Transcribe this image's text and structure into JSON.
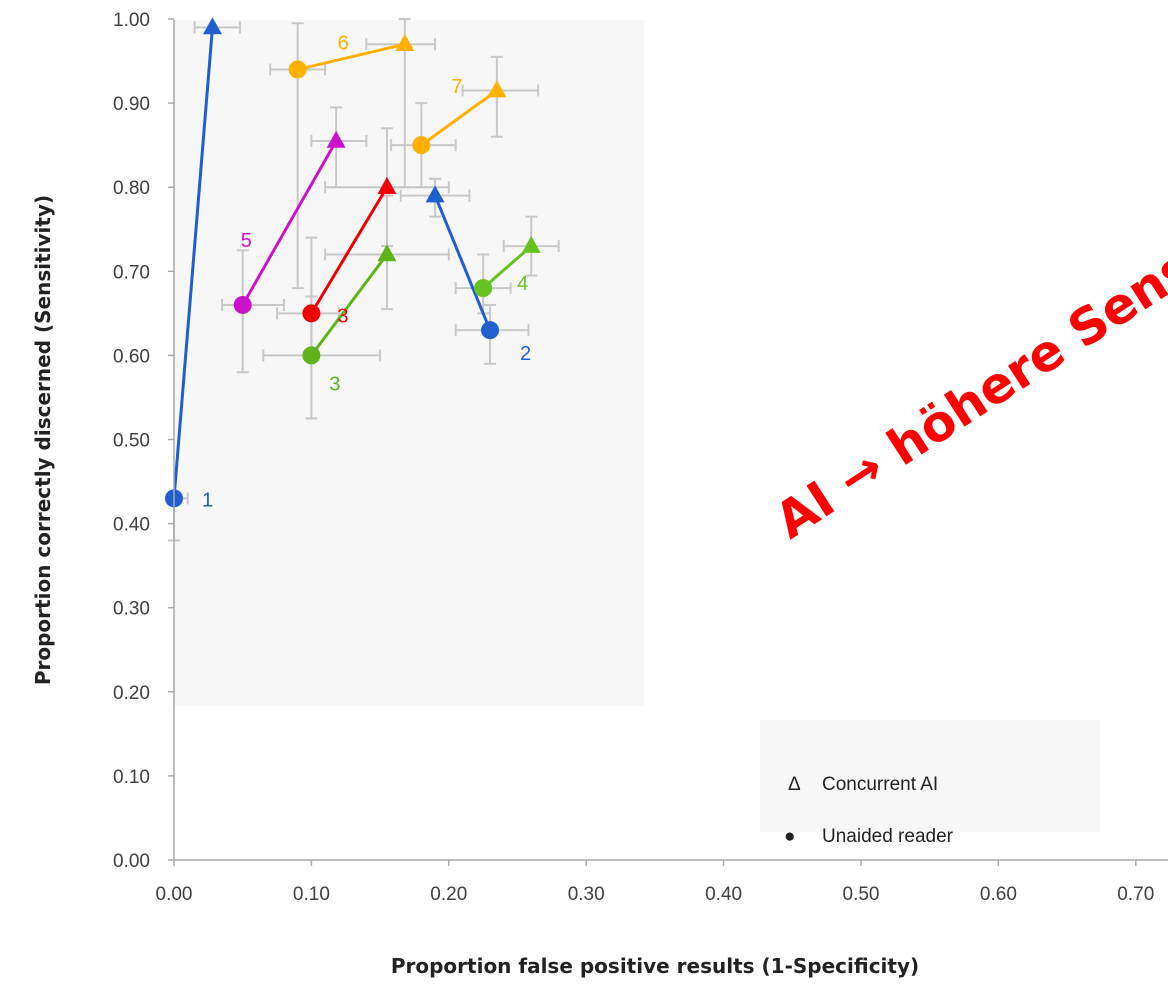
{
  "chart_data": {
    "type": "scatter",
    "xlabel": "Proportion  false positive results (1-Specificity)",
    "ylabel": "Proportion correctly discerned (Sensitivity)",
    "xlim": [
      0,
      0.75
    ],
    "ylim": [
      0,
      1.0
    ],
    "x_ticks": [
      "0.00",
      "0.10",
      "0.20",
      "0.30",
      "0.40",
      "0.50",
      "0.60",
      "0.70"
    ],
    "y_ticks": [
      "0.00",
      "0.10",
      "0.20",
      "0.30",
      "0.40",
      "0.50",
      "0.60",
      "0.70",
      "0.80",
      "0.90",
      "1.00"
    ],
    "legend": {
      "placement": "bottom-right",
      "entries": [
        {
          "symbol": "Δ",
          "label": "Concurrent AI"
        },
        {
          "symbol": "●",
          "label": "Unaided reader"
        }
      ]
    },
    "series": [
      {
        "label": "1",
        "color": "#1f5fcf",
        "unaided": {
          "x": 0.0,
          "y": 0.43,
          "x_err": [
            0.0,
            0.01
          ],
          "y_err": [
            0.38,
            0.43
          ]
        },
        "ai": {
          "x": 0.028,
          "y": 0.99,
          "x_err": [
            0.015,
            0.048
          ],
          "y_err": [
            0.99,
            0.99
          ]
        }
      },
      {
        "label": "2",
        "color": "#1f5fcf",
        "unaided": {
          "x": 0.23,
          "y": 0.63,
          "x_err": [
            0.205,
            0.258
          ],
          "y_err": [
            0.59,
            0.66
          ]
        },
        "ai": {
          "x": 0.19,
          "y": 0.79,
          "x_err": [
            0.165,
            0.215
          ],
          "y_err": [
            0.765,
            0.81
          ]
        }
      },
      {
        "label": "3",
        "color": "#ee0000",
        "unaided": {
          "x": 0.1,
          "y": 0.65,
          "x_err": [
            0.075,
            0.12
          ],
          "y_err": [
            0.6,
            0.74
          ]
        },
        "ai": {
          "x": 0.155,
          "y": 0.8,
          "x_err": [
            0.11,
            0.2
          ],
          "y_err": [
            0.73,
            0.87
          ]
        }
      },
      {
        "label": "3",
        "color": "#5db31a",
        "unaided": {
          "x": 0.1,
          "y": 0.6,
          "x_err": [
            0.065,
            0.15
          ],
          "y_err": [
            0.525,
            0.67
          ]
        },
        "ai": {
          "x": 0.155,
          "y": 0.72,
          "x_err": [
            0.11,
            0.2
          ],
          "y_err": [
            0.655,
            0.79
          ]
        }
      },
      {
        "label": "4",
        "color": "#66c21f",
        "unaided": {
          "x": 0.225,
          "y": 0.68,
          "x_err": [
            0.205,
            0.245
          ],
          "y_err": [
            0.65,
            0.72
          ]
        },
        "ai": {
          "x": 0.26,
          "y": 0.73,
          "x_err": [
            0.24,
            0.28
          ],
          "y_err": [
            0.695,
            0.765
          ]
        }
      },
      {
        "label": "5",
        "color": "#cc11cc",
        "unaided": {
          "x": 0.05,
          "y": 0.66,
          "x_err": [
            0.035,
            0.08
          ],
          "y_err": [
            0.58,
            0.725
          ]
        },
        "ai": {
          "x": 0.118,
          "y": 0.855,
          "x_err": [
            0.1,
            0.14
          ],
          "y_err": [
            0.8,
            0.895
          ]
        }
      },
      {
        "label": "6",
        "color": "#ffb000",
        "unaided": {
          "x": 0.09,
          "y": 0.94,
          "x_err": [
            0.07,
            0.11
          ],
          "y_err": [
            0.68,
            0.995
          ]
        },
        "ai": {
          "x": 0.168,
          "y": 0.97,
          "x_err": [
            0.14,
            0.19
          ],
          "y_err": [
            0.8,
            1.0
          ]
        }
      },
      {
        "label": "7",
        "color": "#ffb000",
        "unaided": {
          "x": 0.18,
          "y": 0.85,
          "x_err": [
            0.158,
            0.205
          ],
          "y_err": [
            0.8,
            0.9
          ]
        },
        "ai": {
          "x": 0.235,
          "y": 0.915,
          "x_err": [
            0.21,
            0.265
          ],
          "y_err": [
            0.86,
            0.955
          ]
        }
      }
    ],
    "annotation": {
      "text": "AI → höhere Sensi Sp",
      "color": "#ff0000"
    }
  }
}
